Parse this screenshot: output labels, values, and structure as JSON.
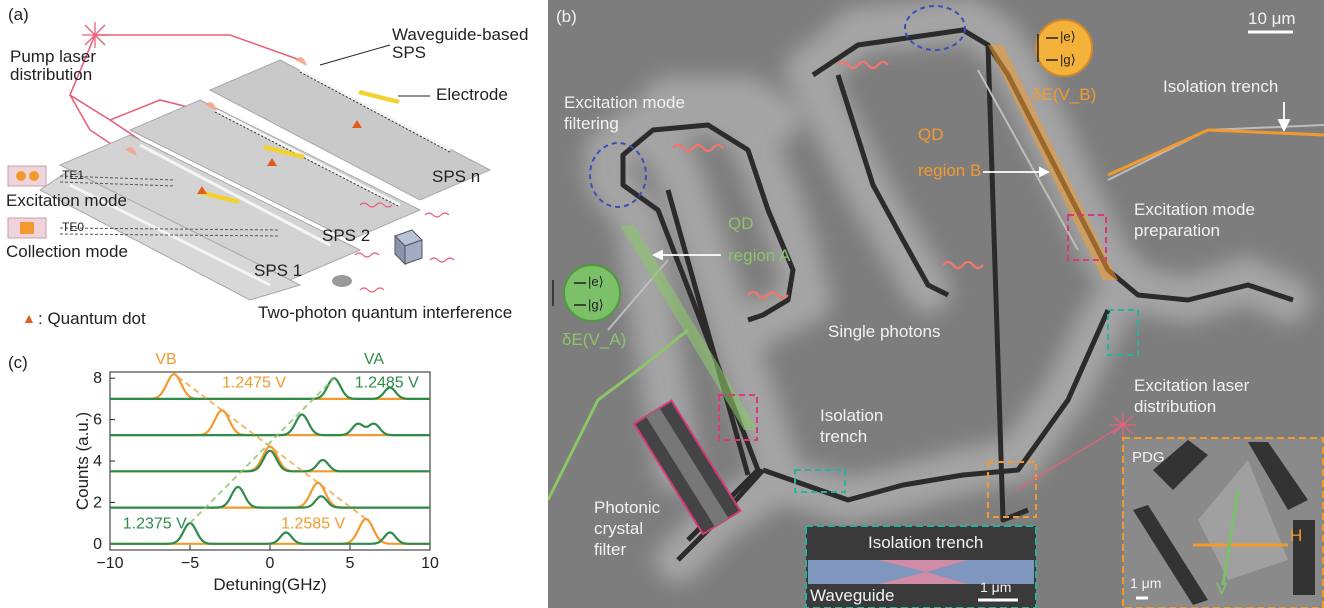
{
  "panels": {
    "a": {
      "tag": "(a)",
      "pump_label": "Pump laser distribution",
      "waveguide_sps_label": "Waveguide-based SPS",
      "electrode_label": "Electrode",
      "te1": "TE1",
      "te0": "TE0",
      "excitation_mode": "Excitation mode",
      "collection_mode": "Collection mode",
      "sps_n": "SPS n",
      "sps_2": "SPS 2",
      "sps_1": "SPS 1",
      "qd_legend_symbol": "▲",
      "qd_legend": ": Quantum dot",
      "tpqi": "Two-photon quantum interference"
    },
    "b": {
      "tag": "(b)",
      "scale_bar": "10 μm",
      "excitation_mode_filtering": "Excitation mode filtering",
      "qd_region_b": "QD",
      "qd_region_b_2": "region B",
      "qd_region_a": "QD",
      "qd_region_a_2": "region A",
      "isolation_trench_top": "Isolation trench",
      "excitation_mode_preparation": "Excitation mode preparation",
      "single_photons": "Single photons",
      "isolation_trench_mid": "Isolation trench",
      "excitation_laser_distribution": "Excitation laser distribution",
      "photonic_crystal_filter": "Photonic crystal filter",
      "level_e": "|e⟩",
      "level_g": "|g⟩",
      "delta_eb": "δE(V_B)",
      "delta_ea": "δE(V_A)",
      "inset_trench_title": "Isolation trench",
      "inset_waveguide": "Waveguide",
      "inset_scale": "1 μm",
      "pdg_title": "PDG",
      "pdg_scale": "1 μm",
      "pdg_h": "H",
      "pdg_v": "V"
    },
    "c": {
      "tag": "(c)"
    }
  },
  "colors": {
    "orange": "#f29a2e",
    "green": "#2e8b4a",
    "light_green": "#8cc56a",
    "pink": "#e8607a",
    "magenta": "#d63a7a",
    "teal": "#26b39a",
    "navy": "#3a4fb8",
    "sem_bg": "#7d7d7d"
  },
  "chart_data": {
    "type": "line",
    "xlabel": "Detuning(GHz)",
    "ylabel": "Counts (a.u.)",
    "xlim": [
      -10,
      10
    ],
    "ylim": [
      -0.3,
      8.3
    ],
    "xticks": [
      -10,
      -5,
      0,
      5,
      10
    ],
    "xtick_labels": [
      "−10",
      "−5",
      "0",
      "5",
      "10"
    ],
    "yticks": [
      0,
      2,
      4,
      6,
      8
    ],
    "legend": [
      {
        "name": "V_B",
        "color": "#f29a2e"
      },
      {
        "name": "V_A",
        "color": "#2e8b4a"
      }
    ],
    "annotations": [
      {
        "text": "1.2475 V",
        "color": "#f29a2e"
      },
      {
        "text": "1.2485 V",
        "color": "#2e8b4a"
      },
      {
        "text": "1.2375 V",
        "color": "#2e8b4a"
      },
      {
        "text": "1.2585 V",
        "color": "#f29a2e"
      }
    ],
    "offsets": [
      0,
      1.75,
      3.5,
      5.25,
      7.0
    ],
    "orange_peak_positions": [
      6.0,
      3.0,
      0.0,
      -3.0,
      -6.0
    ],
    "green_peak_positions": [
      -5.0,
      -2.0,
      0.0,
      2.0,
      4.0
    ],
    "green_side_peaks": [
      [
        1.0,
        7.5
      ],
      [
        3.2
      ],
      [
        3.3
      ],
      [
        5.5,
        6.5
      ],
      [
        7.5
      ]
    ]
  }
}
